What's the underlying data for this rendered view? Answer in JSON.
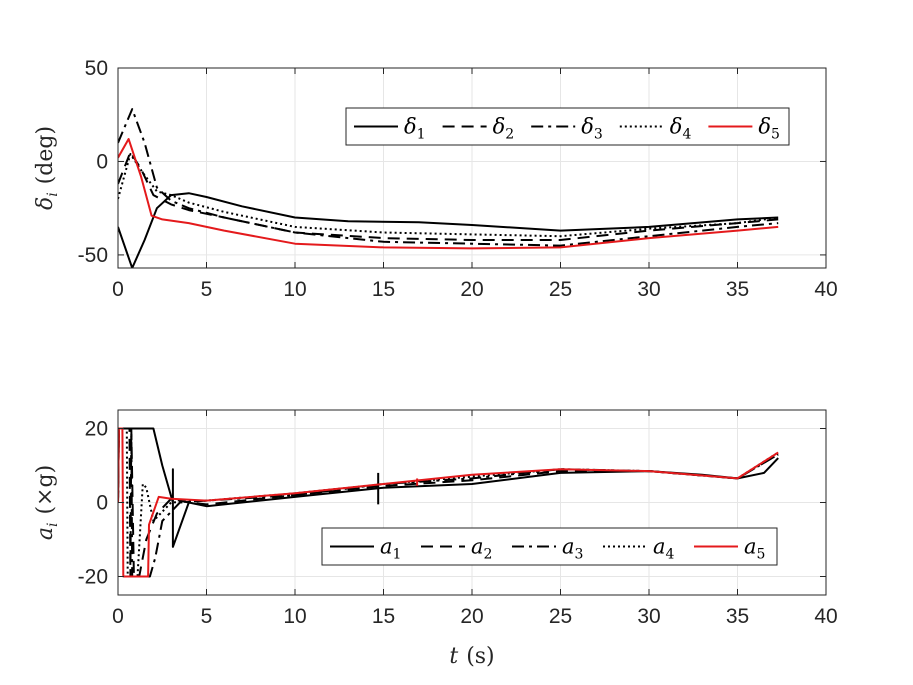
{
  "chart_data": [
    {
      "type": "line",
      "ylabel": "δ_i (deg)",
      "ylabel_main": "δ",
      "ylabel_sub": "i",
      "ylabel_unit": "(deg)",
      "xlim": [
        0,
        40
      ],
      "ylim": [
        -57,
        50
      ],
      "xticks": [
        "0",
        "5",
        "10",
        "15",
        "20",
        "25",
        "30",
        "35",
        "40"
      ],
      "xtick_values": [
        0,
        5,
        10,
        15,
        20,
        25,
        30,
        35,
        40
      ],
      "yticks": [
        "-50",
        "0",
        "50"
      ],
      "ytick_values": [
        -50,
        0,
        50
      ],
      "grid": true,
      "legend_position": "top-right",
      "series": [
        {
          "name": "δ",
          "sub": "1",
          "color": "#000000",
          "dash": "solid",
          "x": [
            0,
            0.8,
            1.5,
            2.2,
            3,
            4,
            5,
            7,
            10,
            13,
            17,
            20,
            25,
            30,
            35,
            37.3
          ],
          "y": [
            -35,
            -57,
            -42,
            -25,
            -18,
            -17,
            -19,
            -24,
            -30,
            -32,
            -32.5,
            -34,
            -37,
            -35,
            -31,
            -30
          ]
        },
        {
          "name": "δ",
          "sub": "2",
          "color": "#000000",
          "dash": "dash",
          "x": [
            0,
            0.7,
            1.3,
            2,
            3,
            4,
            6,
            10,
            15,
            20,
            25,
            30,
            35,
            37.3
          ],
          "y": [
            -12,
            5,
            -4,
            -18,
            -23,
            -26,
            -30,
            -38,
            -41,
            -42,
            -42,
            -37,
            -33,
            -31
          ]
        },
        {
          "name": "δ",
          "sub": "3",
          "color": "#000000",
          "dash": "dashdot",
          "x": [
            0,
            0.8,
            1.5,
            2.2,
            3,
            4,
            6,
            10,
            15,
            20,
            25,
            30,
            35,
            37.3
          ],
          "y": [
            10,
            28,
            10,
            -14,
            -21,
            -25,
            -30,
            -38,
            -43,
            -44,
            -45,
            -40,
            -35,
            -33
          ]
        },
        {
          "name": "δ",
          "sub": "4",
          "color": "#000000",
          "dash": "dotted",
          "x": [
            0,
            0.7,
            1.4,
            2.2,
            3,
            4,
            6,
            10,
            15,
            20,
            25,
            30,
            35,
            37.3
          ],
          "y": [
            -20,
            4,
            -6,
            -16,
            -18,
            -22,
            -27,
            -35,
            -38,
            -39,
            -40,
            -36,
            -33,
            -30
          ]
        },
        {
          "name": "δ",
          "sub": "5",
          "color": "#e41a1c",
          "dash": "solid",
          "x": [
            0,
            0.6,
            1.3,
            1.9,
            2.5,
            4,
            6,
            10,
            15,
            20,
            25,
            30,
            35,
            37.3
          ],
          "y": [
            2,
            12,
            -8,
            -29,
            -31,
            -33,
            -37,
            -44,
            -46,
            -46.5,
            -46,
            -41,
            -37,
            -35
          ]
        }
      ]
    },
    {
      "type": "line",
      "ylabel": "a_i (×g)",
      "ylabel_main": "a",
      "ylabel_sub": "i",
      "ylabel_unit": "(×g)",
      "xlabel": "t (s)",
      "xlabel_main": "t",
      "xlabel_unit": "(s)",
      "xlim": [
        0,
        40
      ],
      "ylim": [
        -25,
        25
      ],
      "xticks": [
        "0",
        "5",
        "10",
        "15",
        "20",
        "25",
        "30",
        "35",
        "40"
      ],
      "xtick_values": [
        0,
        5,
        10,
        15,
        20,
        25,
        30,
        35,
        40
      ],
      "yticks": [
        "-20",
        "0",
        "20"
      ],
      "ytick_values": [
        -20,
        0,
        20
      ],
      "grid": true,
      "legend_position": "bottom-right",
      "series": [
        {
          "name": "a",
          "sub": "1",
          "color": "#000000",
          "dash": "solid",
          "x": [
            0,
            0.05,
            2,
            2.5,
            3.1,
            3.1,
            3.1,
            4,
            5,
            10,
            15,
            20,
            25,
            30,
            33,
            35,
            36.5,
            37.3
          ],
          "y": [
            0,
            20,
            20,
            10,
            0,
            9,
            -12,
            0,
            -1,
            1.5,
            4,
            5,
            8,
            8.5,
            7.5,
            6.5,
            8,
            12
          ],
          "spikes": [
            {
              "x": 14.7,
              "y1": -0.5,
              "y2": 8
            }
          ]
        },
        {
          "name": "a",
          "sub": "2",
          "color": "#000000",
          "dash": "dash",
          "x": [
            0,
            0.05,
            0.65,
            0.7,
            0.75,
            0.9,
            1.2,
            1.6,
            2.2,
            3,
            4,
            5,
            10,
            15,
            20,
            25,
            30,
            35,
            37.3
          ],
          "y": [
            0,
            20,
            20,
            -20,
            20,
            -20,
            -20,
            -10,
            -3,
            1,
            0,
            -0.5,
            2,
            4.5,
            6,
            8.5,
            8.5,
            6.5,
            13
          ]
        },
        {
          "name": "a",
          "sub": "3",
          "color": "#000000",
          "dash": "dashdot",
          "x": [
            0,
            0.05,
            0.7,
            0.75,
            0.8,
            1,
            1.8,
            2.1,
            2.5,
            3.5,
            5,
            10,
            15,
            20,
            25,
            30,
            35,
            37.3
          ],
          "y": [
            0,
            20,
            20,
            20,
            -20,
            -20,
            -20,
            -15,
            -5,
            0,
            0.5,
            2,
            5,
            6.5,
            9,
            8.5,
            6.5,
            13
          ]
        },
        {
          "name": "a",
          "sub": "4",
          "color": "#000000",
          "dash": "dotted",
          "x": [
            0,
            0.05,
            0.5,
            0.55,
            1.1,
            1.4,
            1.6,
            2,
            3,
            5,
            10,
            15,
            20,
            25,
            30,
            35,
            37.3
          ],
          "y": [
            0,
            20,
            20,
            -20,
            -20,
            5,
            4,
            -5,
            0,
            0.5,
            2.5,
            5,
            7,
            9,
            8.5,
            6.5,
            13.5
          ]
        },
        {
          "name": "a",
          "sub": "5",
          "color": "#e41a1c",
          "dash": "solid",
          "x": [
            0,
            0.05,
            0.25,
            0.3,
            1.7,
            1.75,
            2.3,
            3,
            5,
            10,
            15,
            20,
            25,
            30,
            35,
            37.3
          ],
          "y": [
            0,
            20,
            20,
            -20,
            -20,
            -6,
            1.5,
            1,
            0.5,
            2.5,
            5,
            7.5,
            9,
            8.5,
            6.5,
            13.5
          ],
          "spikes": [
            {
              "x": 16.9,
              "y1": 4.5,
              "y2": 6.5
            }
          ]
        }
      ]
    }
  ]
}
